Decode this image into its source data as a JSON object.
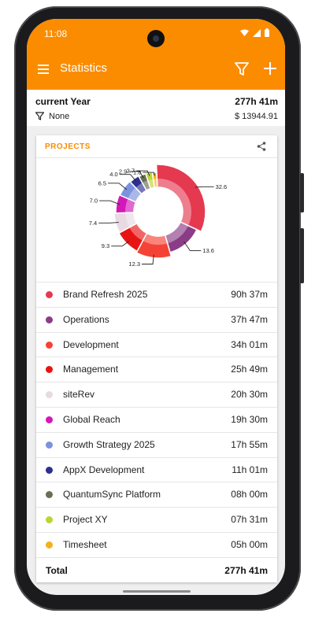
{
  "status": {
    "time": "11:08"
  },
  "header": {
    "title": "Statistics",
    "icons": [
      "menu-icon",
      "filter-icon",
      "add-icon"
    ]
  },
  "summary": {
    "period": "current Year",
    "total": "277h 41m",
    "filter": "None",
    "amount": "$ 13944.91"
  },
  "card": {
    "title": "PROJECTS",
    "share_icon": "share-icon"
  },
  "projects": [
    {
      "name": "Brand Refresh 2025",
      "time": "90h 37m",
      "color": "#e53950"
    },
    {
      "name": "Operations",
      "time": "37h 47m",
      "color": "#8a3d86"
    },
    {
      "name": "Development",
      "time": "34h 01m",
      "color": "#f44336"
    },
    {
      "name": "Management",
      "time": "25h 49m",
      "color": "#e81414"
    },
    {
      "name": "siteRev",
      "time": "20h 30m",
      "color": "#e8d9e3"
    },
    {
      "name": "Global Reach",
      "time": "19h 30m",
      "color": "#d218b8"
    },
    {
      "name": "Growth Strategy 2025",
      "time": "17h 55m",
      "color": "#7b93de"
    },
    {
      "name": "AppX Development",
      "time": "11h 01m",
      "color": "#2c2f8f"
    },
    {
      "name": "QuantumSync Platform",
      "time": "08h 00m",
      "color": "#6b6e55"
    },
    {
      "name": "Project XY",
      "time": "07h 31m",
      "color": "#bcd436"
    },
    {
      "name": "Timesheet",
      "time": "05h 00m",
      "color": "#f2b21b"
    }
  ],
  "total": {
    "label": "Total",
    "value": "277h 41m"
  },
  "chart_data": {
    "type": "pie",
    "categories": [
      "Brand Refresh 2025",
      "Operations",
      "Development",
      "Management",
      "siteRev",
      "Global Reach",
      "Growth Strategy 2025",
      "AppX Development",
      "QuantumSync Platform",
      "Project XY",
      "Timesheet"
    ],
    "values": [
      32.6,
      13.6,
      12.3,
      9.3,
      7.4,
      7.0,
      6.5,
      4.0,
      2.9,
      2.7,
      1.8
    ],
    "labels": [
      "32.6",
      "13.6",
      "12.3",
      "9.3",
      "7.4",
      "7.0",
      "6.5",
      "4.0",
      "2.9",
      "2.7",
      "1.8"
    ]
  }
}
